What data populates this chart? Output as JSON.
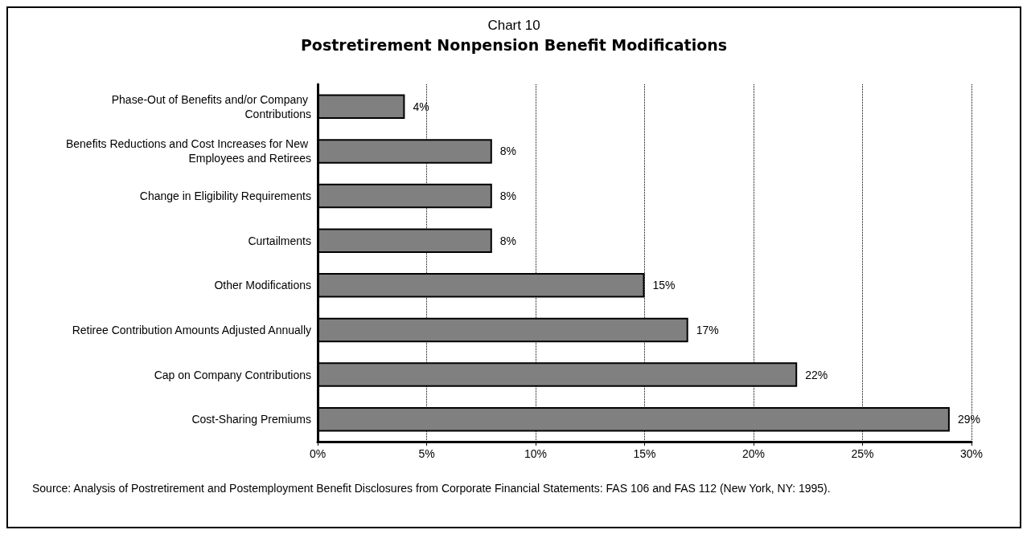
{
  "chart_data": {
    "type": "bar",
    "orientation": "horizontal",
    "title": "Chart 10",
    "subtitle": "Postretirement Nonpension Benefit Modifications",
    "categories": [
      "Phase-Out of Benefits and/or Company Contributions",
      "Benefits Reductions and Cost Increases for New Employees and Retirees",
      "Change in Eligibility Requirements",
      "Curtailments",
      "Other Modifications",
      "Retiree Contribution Amounts Adjusted Annually",
      "Cap on Company Contributions",
      "Cost-Sharing Premiums"
    ],
    "values": [
      4,
      8,
      8,
      8,
      15,
      17,
      22,
      29
    ],
    "value_labels": [
      "4%",
      "8%",
      "8%",
      "8%",
      "15%",
      "17%",
      "22%",
      "29%"
    ],
    "color": "#808080",
    "xlim": [
      0,
      30
    ],
    "xticks": [
      {
        "value": 0,
        "label": "0%"
      },
      {
        "value": 5,
        "label": "5%"
      },
      {
        "value": 10,
        "label": "10%"
      },
      {
        "value": 15,
        "label": "15%"
      },
      {
        "value": 20,
        "label": "20%"
      },
      {
        "value": 25,
        "label": "25%"
      },
      {
        "value": 30,
        "label": "30%"
      }
    ],
    "grid": "x",
    "annotations": [
      "Source: Analysis of Postretirement and Postemployment Benefit Disclosures from Corporate Financial Statements: FAS 106 and FAS 112 (New York, NY: 1995)."
    ]
  }
}
